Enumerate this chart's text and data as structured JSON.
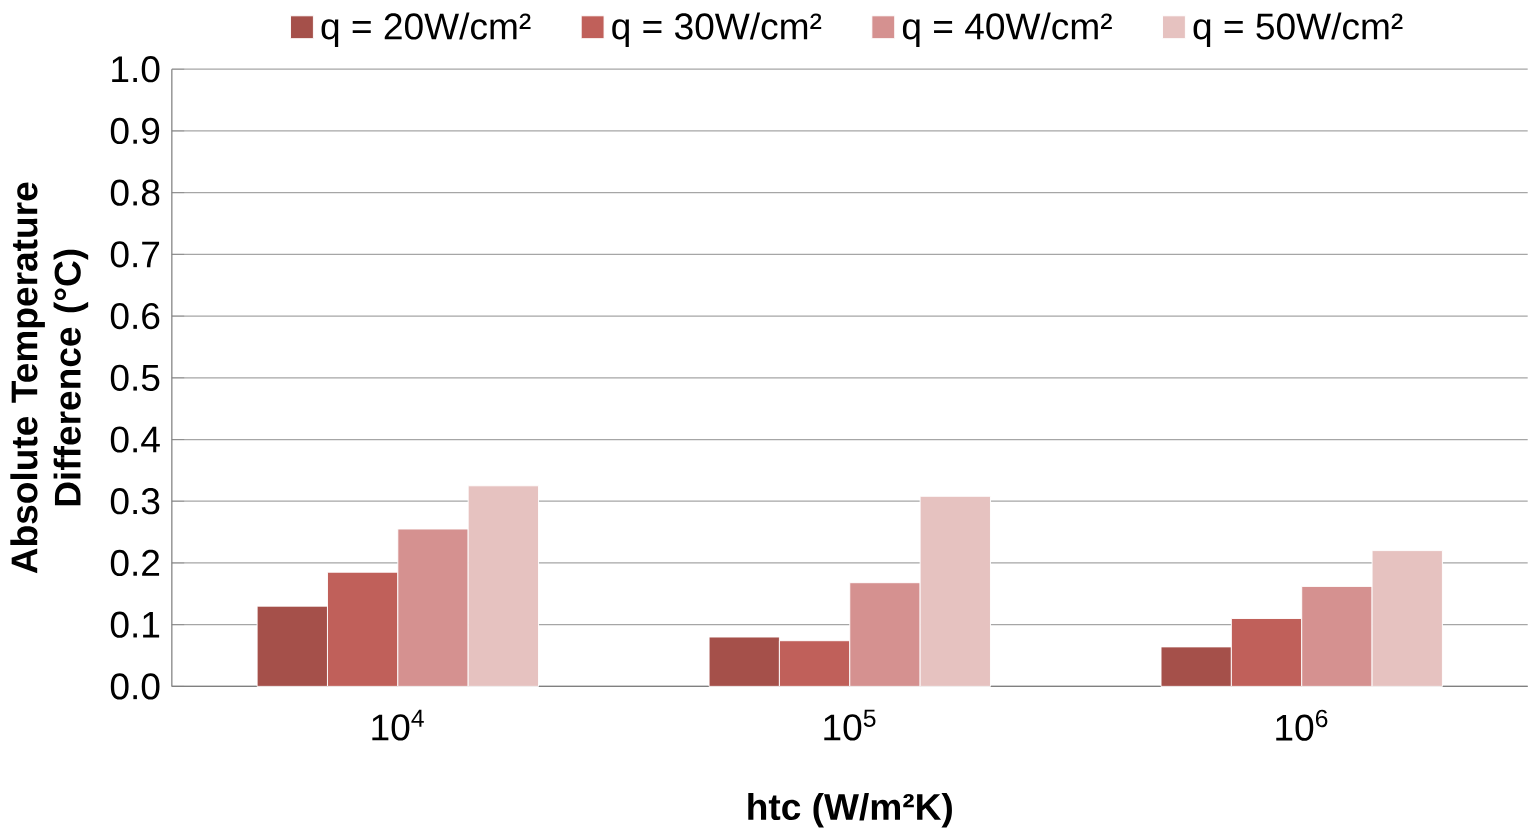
{
  "chart_data": {
    "type": "bar",
    "xlabel": "htc (W/m²K)",
    "ylabel": "Absolute Temperature Difference (°C)",
    "categories": [
      "10$^{4}$",
      "10$^{5}$",
      "10$^{6}$"
    ],
    "series": [
      {
        "name": "q = 20W/cm²",
        "color": "#a5504a",
        "values": [
          0.13,
          0.08,
          0.064
        ]
      },
      {
        "name": "q = 30W/cm²",
        "color": "#c0605a",
        "values": [
          0.185,
          0.074,
          0.11
        ]
      },
      {
        "name": "q = 40W/cm²",
        "color": "#d59190",
        "values": [
          0.255,
          0.168,
          0.162
        ]
      },
      {
        "name": "q = 50W/cm²",
        "color": "#e6c2c0",
        "values": [
          0.325,
          0.308,
          0.22
        ]
      }
    ],
    "ylim": [
      0,
      1
    ],
    "yticks": [
      {
        "value": 0,
        "label": "0.0"
      },
      {
        "value": 0.1,
        "label": "0.1"
      },
      {
        "value": 0.2,
        "label": "0.2"
      },
      {
        "value": 0.3,
        "label": "0.3"
      },
      {
        "value": 0.4,
        "label": "0.4"
      },
      {
        "value": 0.5,
        "label": "0.5"
      },
      {
        "value": 0.6,
        "label": "0.6"
      },
      {
        "value": 0.7,
        "label": "0.7"
      },
      {
        "value": 0.8,
        "label": "0.8"
      },
      {
        "value": 0.9,
        "label": "0.9"
      },
      {
        "value": 1,
        "label": "1.0"
      }
    ],
    "grid": "y",
    "legend": "top"
  }
}
